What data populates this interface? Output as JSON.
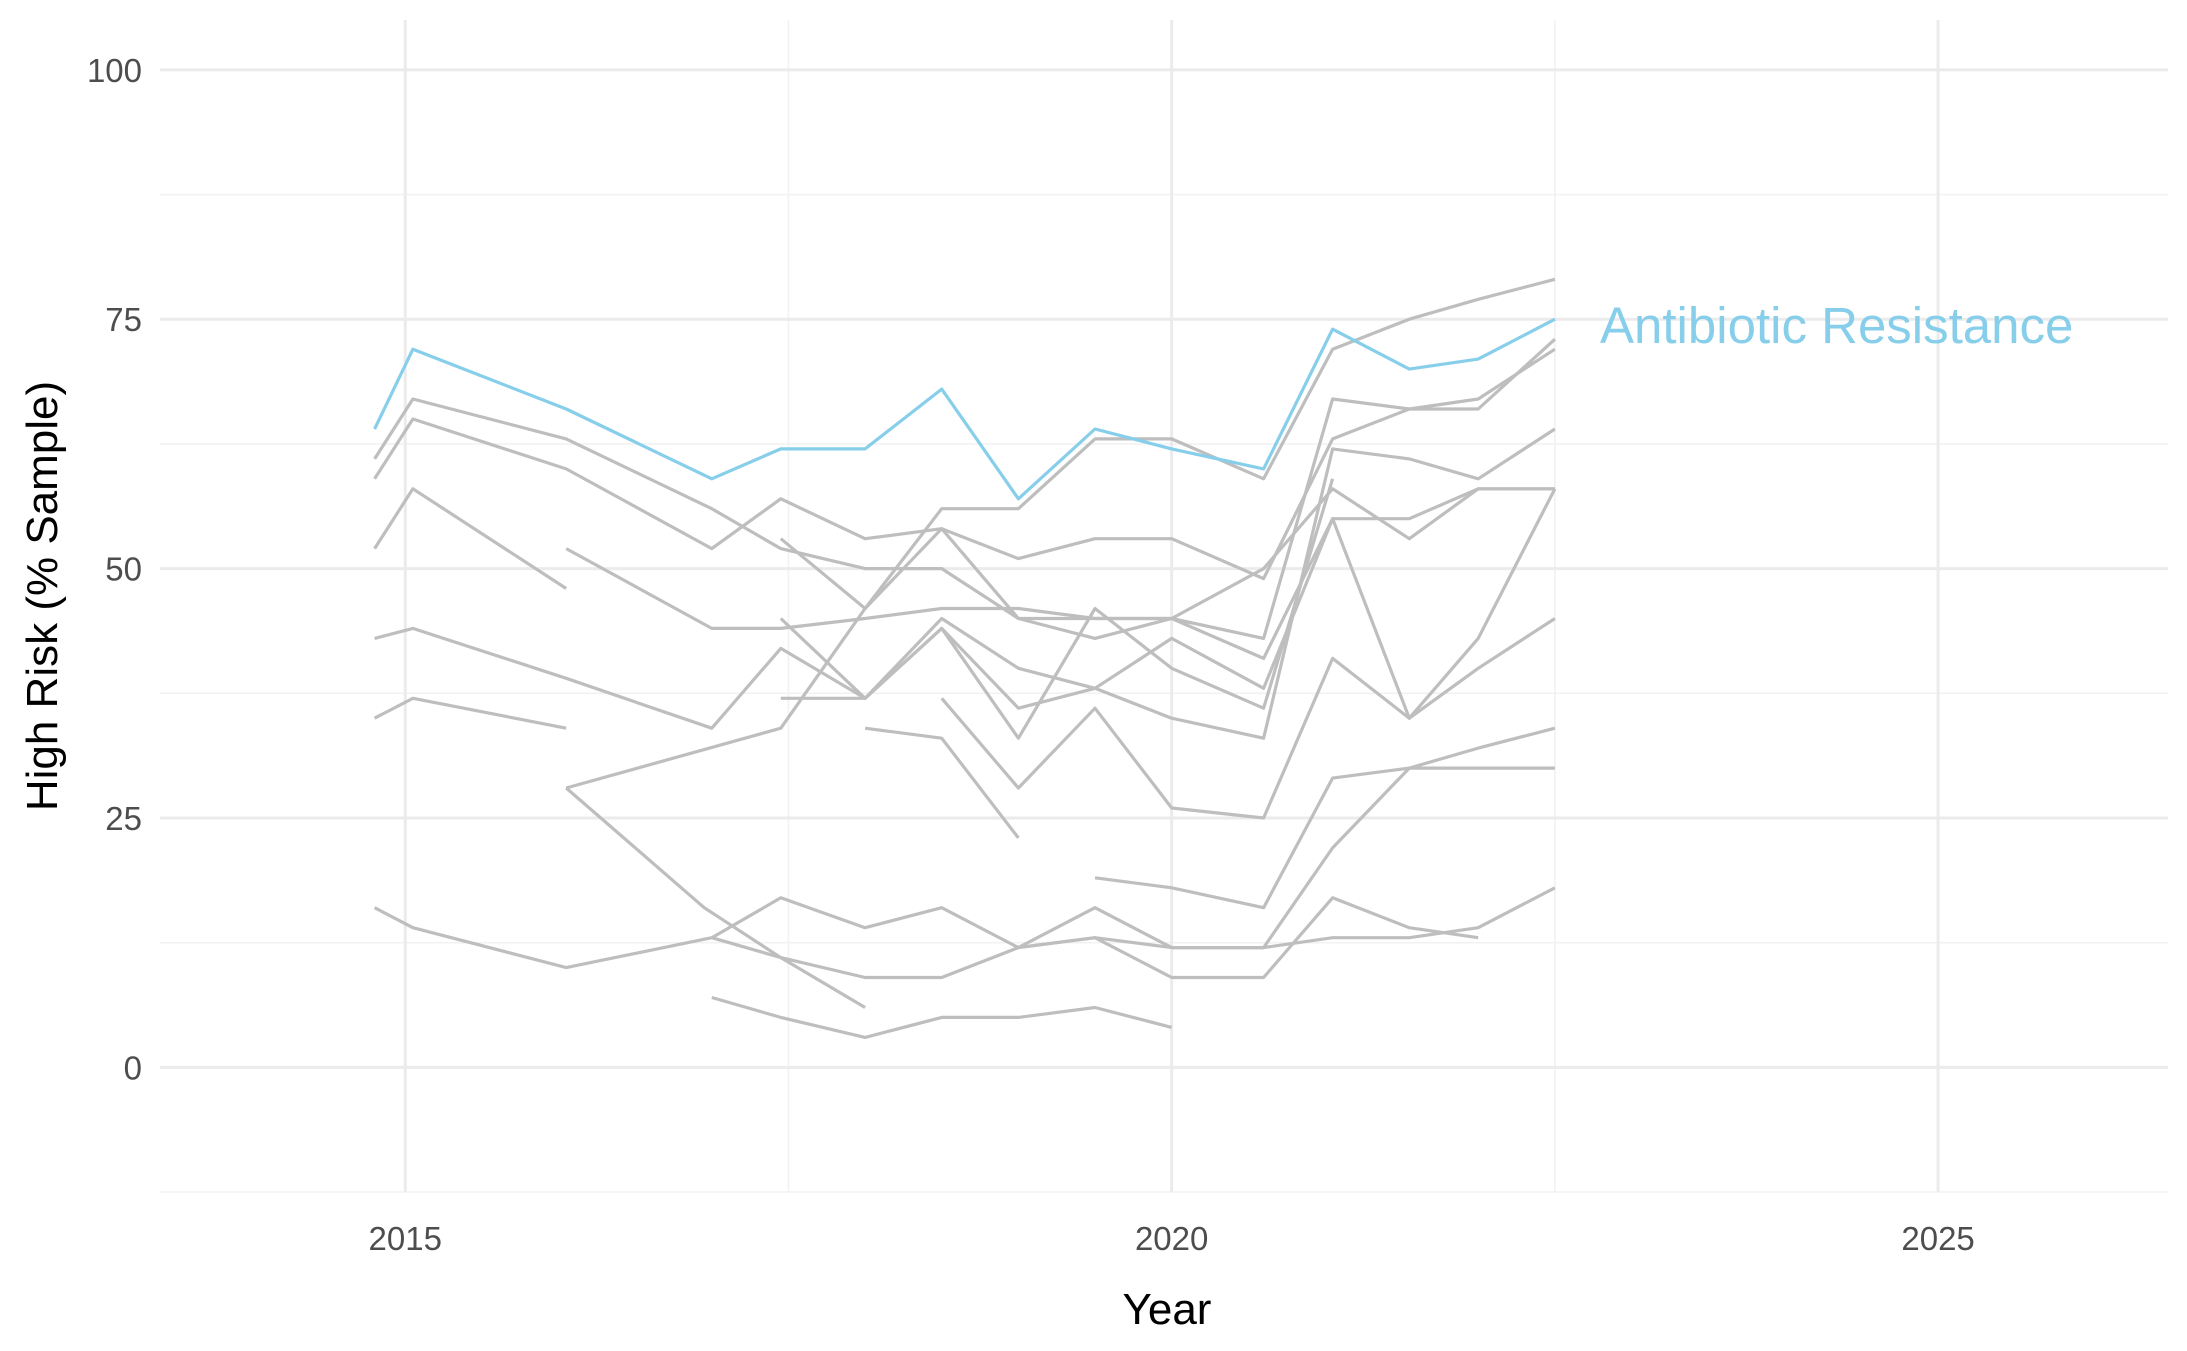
{
  "chart_data": {
    "type": "line",
    "xlabel": "Year",
    "ylabel": "High Risk (% Sample)",
    "xlim": [
      2013.4,
      2026.5
    ],
    "ylim": [
      -12.5,
      105
    ],
    "x_ticks": [
      2015,
      2020,
      2025
    ],
    "y_ticks": [
      0,
      25,
      50,
      75,
      100
    ],
    "grid": true,
    "colors": {
      "highlight": "#87CEEB",
      "other": "#BEBEBE"
    },
    "highlight_label": "Antibiotic Resistance",
    "series": [
      {
        "highlight": true,
        "x": [
          2014.8,
          2015.05,
          2016.05,
          2017.0,
          2017.45,
          2018.0,
          2018.5,
          2019.0,
          2019.5,
          2020.0,
          2020.6,
          2021.05,
          2021.55,
          2022.0,
          2022.5
        ],
        "y": [
          64,
          72,
          66,
          59,
          62,
          62,
          68,
          57,
          64,
          62,
          60,
          74,
          70,
          71,
          75
        ]
      },
      {
        "x": [
          2014.8,
          2015.05,
          2016.05,
          2017.0,
          2017.45,
          2018.0,
          2018.5,
          2019.0,
          2019.5,
          2020.0,
          2020.6,
          2021.05,
          2021.55,
          2022.0,
          2022.5
        ],
        "y": [
          61,
          67,
          63,
          56,
          52,
          50,
          50,
          45,
          45,
          45,
          43,
          67,
          66,
          66,
          73
        ]
      },
      {
        "x": [
          2014.8,
          2015.05,
          2016.05,
          2017.0,
          2017.45,
          2018.0,
          2018.5,
          2019.0,
          2019.5,
          2020.0,
          2020.6,
          2021.05,
          2021.55,
          2022.0,
          2022.5
        ],
        "y": [
          59,
          65,
          60,
          52,
          57,
          53,
          54,
          51,
          53,
          53,
          49,
          63,
          66,
          67,
          72
        ]
      },
      {
        "x": [
          2014.8,
          2015.05,
          2016.05
        ],
        "y": [
          52,
          58,
          48
        ]
      },
      {
        "x": [
          2016.05,
          2017.0,
          2017.45,
          2018.0,
          2018.5,
          2019.0,
          2019.5,
          2020.0,
          2020.6,
          2021.05,
          2021.55,
          2022.0,
          2022.5
        ],
        "y": [
          52,
          44,
          44,
          45,
          46,
          46,
          45,
          45,
          41,
          55,
          55,
          58,
          58
        ]
      },
      {
        "x": [
          2014.8,
          2015.05,
          2016.05,
          2017.0,
          2017.45,
          2018.0,
          2018.5,
          2019.0,
          2019.5,
          2020.0,
          2020.6,
          2021.05,
          2021.55,
          2022.0,
          2022.5
        ],
        "y": [
          43,
          44,
          39,
          34,
          42,
          37,
          45,
          40,
          38,
          35,
          33,
          62,
          61,
          59,
          64
        ]
      },
      {
        "x": [
          2014.8,
          2015.05,
          2016.05
        ],
        "y": [
          35,
          37,
          34
        ]
      },
      {
        "x": [
          2016.05,
          2017.45,
          2018.0,
          2018.5,
          2019.0,
          2019.5,
          2020.0,
          2020.6,
          2021.05,
          2021.55,
          2022.0,
          2022.5
        ],
        "y": [
          28,
          34,
          46,
          56,
          56,
          63,
          63,
          59,
          72,
          75,
          77,
          79
        ]
      },
      {
        "x": [
          2016.05,
          2016.95,
          2017.45,
          2018.0
        ],
        "y": [
          28,
          16,
          11,
          6
        ]
      },
      {
        "x": [
          2017.45,
          2018.0,
          2018.5,
          2019.0,
          2019.5,
          2020.0,
          2020.6,
          2021.05,
          2021.55,
          2022.0,
          2022.5
        ],
        "y": [
          53,
          46,
          54,
          45,
          43,
          45,
          50,
          58,
          53,
          58,
          58
        ]
      },
      {
        "x": [
          2017.45,
          2018.0,
          2018.5,
          2019.0,
          2019.5,
          2020.0,
          2020.6,
          2021.05
        ],
        "y": [
          45,
          37,
          44,
          33,
          46,
          40,
          36,
          59
        ]
      },
      {
        "x": [
          2017.45,
          2018.0,
          2018.5,
          2019.0,
          2019.5,
          2020.0,
          2020.6,
          2021.05,
          2021.55,
          2022.0,
          2022.5
        ],
        "y": [
          37,
          37,
          44,
          36,
          38,
          43,
          38,
          55,
          35,
          40,
          45
        ]
      },
      {
        "x": [
          2018.0,
          2018.5,
          2019.0
        ],
        "y": [
          34,
          33,
          23
        ]
      },
      {
        "x": [
          2018.5,
          2019.0,
          2019.5,
          2020.0,
          2020.6,
          2021.05,
          2021.55,
          2022.0,
          2022.5
        ],
        "y": [
          37,
          28,
          36,
          26,
          25,
          41,
          35,
          43,
          58
        ]
      },
      {
        "x": [
          2019.5,
          2020.0,
          2020.6,
          2021.05,
          2021.55,
          2022.0,
          2022.5
        ],
        "y": [
          19,
          18,
          16,
          29,
          30,
          30,
          30
        ]
      },
      {
        "x": [
          2014.8,
          2015.05,
          2016.05,
          2017.0,
          2017.45,
          2018.0,
          2018.5,
          2019.0,
          2019.5,
          2020.0,
          2020.6,
          2021.05,
          2021.55,
          2022.0,
          2022.5
        ],
        "y": [
          16,
          14,
          10,
          13,
          17,
          14,
          16,
          12,
          16,
          12,
          12,
          22,
          30,
          32,
          34
        ]
      },
      {
        "x": [
          2017.0,
          2017.45,
          2018.0,
          2018.5,
          2019.0,
          2019.5,
          2020.0,
          2020.6,
          2021.05,
          2021.55,
          2022.0
        ],
        "y": [
          13,
          11,
          9,
          9,
          12,
          13,
          9,
          9,
          17,
          14,
          13
        ]
      },
      {
        "x": [
          2019.0,
          2019.5,
          2020.0,
          2020.6,
          2021.05,
          2021.55,
          2022.0,
          2022.5
        ],
        "y": [
          12,
          13,
          12,
          12,
          13,
          13,
          14,
          18
        ]
      },
      {
        "x": [
          2017.0,
          2017.45,
          2018.0,
          2018.5,
          2019.0,
          2019.5,
          2020.0
        ],
        "y": [
          7,
          5,
          3,
          5,
          5,
          6,
          4
        ]
      }
    ]
  }
}
